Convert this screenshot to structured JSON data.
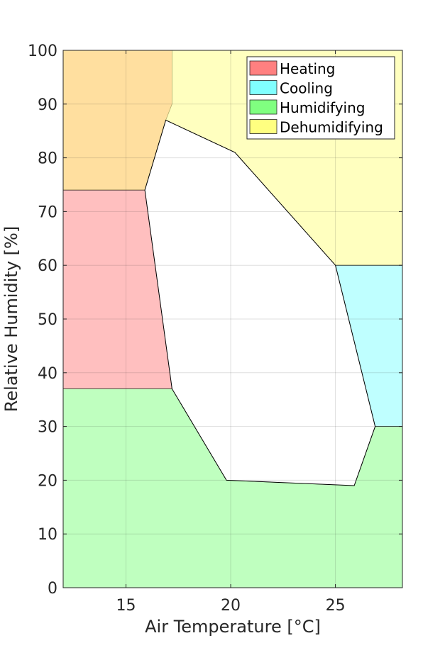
{
  "chart_data": {
    "type": "area",
    "title": "",
    "xlabel": "Air Temperature [°C]",
    "ylabel": "Relative Humidity [%]",
    "xlim": [
      12,
      28.2
    ],
    "ylim": [
      0,
      100
    ],
    "xticks": [
      15,
      20,
      25
    ],
    "yticks": [
      0,
      10,
      20,
      30,
      40,
      50,
      60,
      70,
      80,
      90,
      100
    ],
    "grid": true,
    "legend_position": "top-right",
    "series": [
      {
        "name": "Heating",
        "color": "#ff8080",
        "regions": [
          [
            [
              12,
              37
            ],
            [
              17.2,
              37
            ],
            [
              15.9,
              74
            ],
            [
              12,
              74
            ]
          ],
          [
            [
              12,
              74
            ],
            [
              15.9,
              74
            ],
            [
              16.9,
              87
            ],
            [
              17.2,
              90
            ],
            [
              17.2,
              100
            ],
            [
              12,
              100
            ]
          ]
        ]
      },
      {
        "name": "Cooling",
        "color": "#80ffff",
        "regions": [
          [
            [
              25,
              30
            ],
            [
              28.2,
              30
            ],
            [
              28.2,
              60
            ],
            [
              25,
              60
            ],
            [
              26.9,
              30
            ]
          ]
        ]
      },
      {
        "name": "Humidifying",
        "color": "#80ff80",
        "regions": [
          [
            [
              12,
              0
            ],
            [
              28.2,
              0
            ],
            [
              28.2,
              30
            ],
            [
              26.9,
              30
            ],
            [
              25.9,
              19
            ],
            [
              19.8,
              20
            ],
            [
              17.2,
              37
            ],
            [
              12,
              37
            ]
          ]
        ]
      },
      {
        "name": "Dehumidifying",
        "color": "#ffff80",
        "regions": [
          [
            [
              15.9,
              74
            ],
            [
              12,
              74
            ],
            [
              12,
              100
            ],
            [
              28.2,
              100
            ],
            [
              28.2,
              60
            ],
            [
              25,
              60
            ],
            [
              20.2,
              81
            ],
            [
              16.9,
              87
            ]
          ]
        ]
      }
    ],
    "comfort_zone": [
      [
        16.9,
        87
      ],
      [
        20.2,
        81
      ],
      [
        25,
        60
      ],
      [
        26.9,
        30
      ],
      [
        25.9,
        19
      ],
      [
        19.8,
        20
      ],
      [
        17.2,
        37
      ],
      [
        15.9,
        74
      ]
    ]
  }
}
